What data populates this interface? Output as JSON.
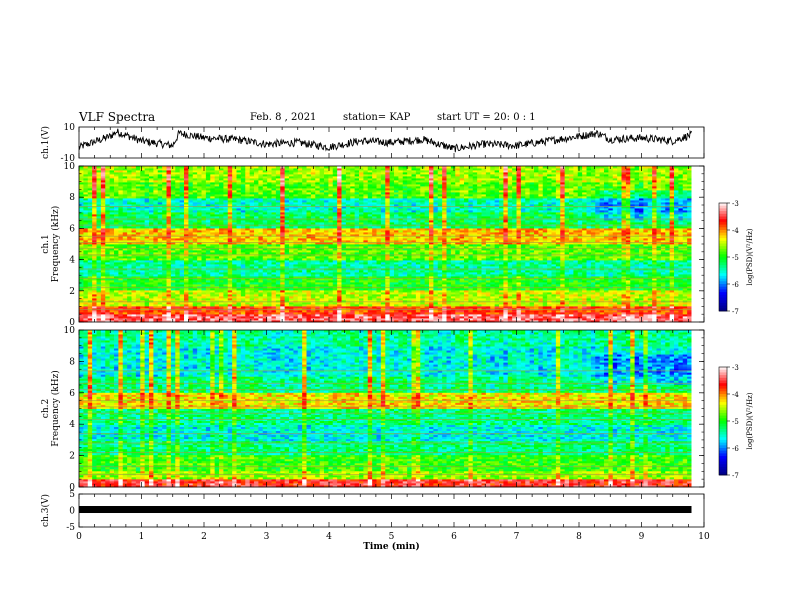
{
  "header": {
    "title": "VLF Spectra",
    "date": "Feb. 8 , 2021",
    "station": "station= KAP",
    "start": "start UT =  20: 0  : 1"
  },
  "colors": {
    "trace": "#000000",
    "colormap": [
      "#000080",
      "#0000ff",
      "#00ffff",
      "#00ff00",
      "#ffff00",
      "#ff0000",
      "#ffffff"
    ]
  },
  "chart_data": [
    {
      "type": "line",
      "panel": "ch1-waveform",
      "ylabel": "ch.1(V)",
      "ylim": [
        -10,
        10
      ],
      "yticks": [
        "10",
        "-10"
      ],
      "xlim": [
        0,
        10
      ],
      "x": [
        0.0,
        0.5,
        0.6,
        1.0,
        1.5,
        1.6,
        2.0,
        2.5,
        3.0,
        3.5,
        4.0,
        4.5,
        5.0,
        5.5,
        6.0,
        6.5,
        7.0,
        7.5,
        8.0,
        8.3,
        8.5,
        9.0,
        9.5,
        9.8
      ],
      "y": [
        -3,
        4,
        7,
        1,
        -2,
        6,
        3,
        2,
        -1,
        0,
        -3,
        1,
        0,
        2,
        -4,
        -1,
        -2,
        1,
        4,
        6,
        2,
        3,
        1,
        5
      ]
    },
    {
      "type": "heatmap",
      "panel": "ch1-spectrogram",
      "ylabel": "ch.1",
      "ylabel2": "Frequency (kHz)",
      "ylim": [
        0,
        10
      ],
      "yticks": [
        "0",
        "2",
        "4",
        "6",
        "8",
        "10"
      ],
      "xlim": [
        0,
        10
      ],
      "colorbar": {
        "label": "log(PSD)(V²/Hz)",
        "range": [
          -7,
          -3
        ],
        "ticks": [
          "-3",
          "-4",
          "-5",
          "-6",
          "-7"
        ]
      },
      "bands": [
        {
          "f": [
            0.0,
            0.5
          ],
          "level": -3.4
        },
        {
          "f": [
            0.5,
            1.0
          ],
          "level": -3.8
        },
        {
          "f": [
            1.0,
            2.0
          ],
          "level": -4.5
        },
        {
          "f": [
            2.0,
            3.0
          ],
          "level": -5.0
        },
        {
          "f": [
            3.0,
            4.0
          ],
          "level": -5.4
        },
        {
          "f": [
            4.0,
            5.0
          ],
          "level": -4.8
        },
        {
          "f": [
            5.0,
            6.0
          ],
          "level": -4.2
        },
        {
          "f": [
            6.0,
            7.0
          ],
          "level": -5.2
        },
        {
          "f": [
            7.0,
            8.0
          ],
          "level": -5.5
        },
        {
          "f": [
            8.0,
            9.0
          ],
          "level": -4.8
        },
        {
          "f": [
            9.0,
            10.0
          ],
          "level": -4.6
        }
      ]
    },
    {
      "type": "heatmap",
      "panel": "ch2-spectrogram",
      "ylabel": "ch.2",
      "ylabel2": "Frequency (kHz)",
      "ylim": [
        0,
        10
      ],
      "yticks": [
        "0",
        "2",
        "4",
        "6",
        "8",
        "10"
      ],
      "xlim": [
        0,
        10
      ],
      "colorbar": {
        "label": "log(PSD)(V²/Hz)",
        "range": [
          -7,
          -3
        ],
        "ticks": [
          "-3",
          "-4",
          "-5",
          "-6",
          "-7"
        ]
      },
      "bands": [
        {
          "f": [
            0.0,
            0.5
          ],
          "level": -3.6
        },
        {
          "f": [
            0.5,
            1.0
          ],
          "level": -4.6
        },
        {
          "f": [
            1.0,
            2.0
          ],
          "level": -4.9
        },
        {
          "f": [
            2.0,
            3.0
          ],
          "level": -5.3
        },
        {
          "f": [
            3.0,
            4.0
          ],
          "level": -5.6
        },
        {
          "f": [
            4.0,
            5.0
          ],
          "level": -5.3
        },
        {
          "f": [
            5.0,
            6.0
          ],
          "level": -4.3
        },
        {
          "f": [
            6.0,
            7.0
          ],
          "level": -5.3
        },
        {
          "f": [
            7.0,
            8.0
          ],
          "level": -5.6
        },
        {
          "f": [
            8.0,
            9.0
          ],
          "level": -5.6
        },
        {
          "f": [
            9.0,
            10.0
          ],
          "level": -5.4
        }
      ]
    },
    {
      "type": "line",
      "panel": "ch3-waveform",
      "ylabel": "ch.3(V)",
      "ylim": [
        -5,
        5
      ],
      "yticks": [
        "5",
        "0",
        "-5"
      ],
      "xlim": [
        0,
        10
      ],
      "xlabel": "Time (min)",
      "xticks": [
        "0",
        "1",
        "2",
        "3",
        "4",
        "5",
        "6",
        "7",
        "8",
        "9",
        "10"
      ],
      "x": [
        0.0,
        9.8
      ],
      "y": [
        0.3,
        0.3
      ]
    }
  ]
}
